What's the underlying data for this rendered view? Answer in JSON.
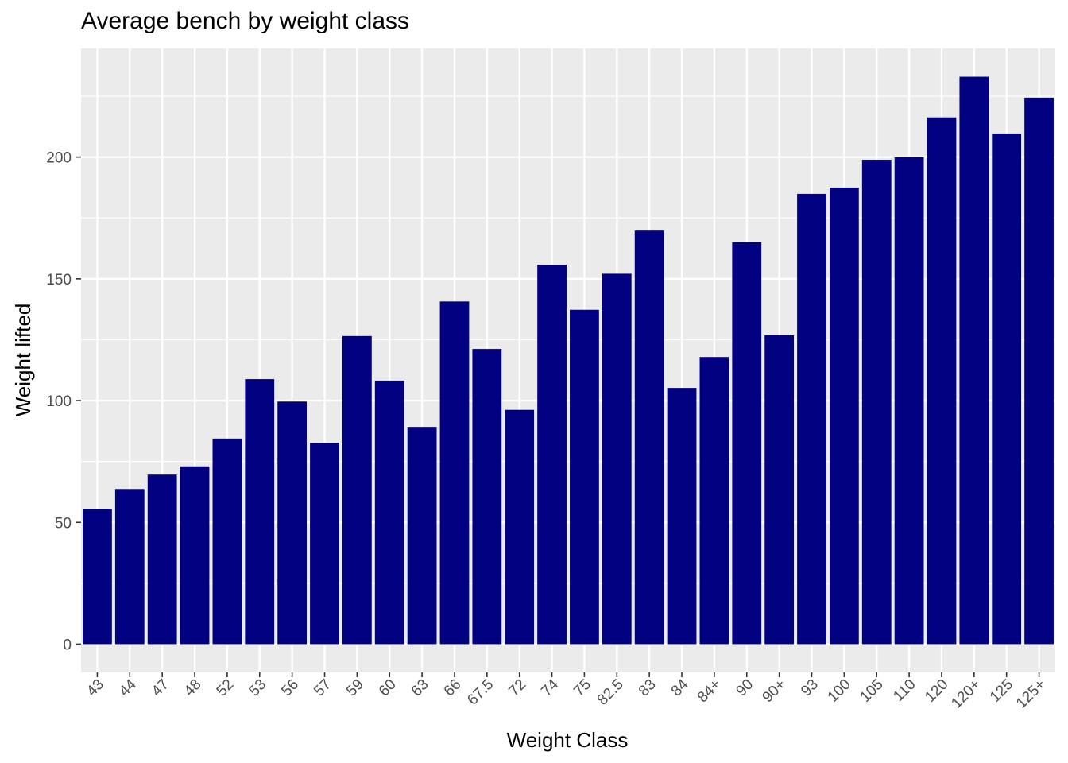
{
  "chart_data": {
    "type": "bar",
    "title": "Average bench by weight class",
    "xlabel": "Weight Class",
    "ylabel": "Weight lifted",
    "categories": [
      "43",
      "44",
      "47",
      "48",
      "52",
      "53",
      "56",
      "57",
      "59",
      "60",
      "63",
      "66",
      "67.5",
      "72",
      "74",
      "75",
      "82.5",
      "83",
      "84",
      "84+",
      "90",
      "90+",
      "93",
      "100",
      "105",
      "110",
      "120",
      "120+",
      "125",
      "125+"
    ],
    "values": [
      55.5,
      63.7,
      69.6,
      73.0,
      84.4,
      108.8,
      99.6,
      82.7,
      126.5,
      108.2,
      89.2,
      140.7,
      121.2,
      96.2,
      155.8,
      137.3,
      152.1,
      169.8,
      105.2,
      117.9,
      165.0,
      126.8,
      184.9,
      187.5,
      198.9,
      199.9,
      216.3,
      233.0,
      209.7,
      224.4
    ],
    "yticks": [
      0,
      50,
      100,
      150,
      200
    ],
    "ylim": [
      -11.6,
      244.6
    ],
    "bar_color": "#000080",
    "panel_color": "#EBEBEB",
    "grid": true
  }
}
